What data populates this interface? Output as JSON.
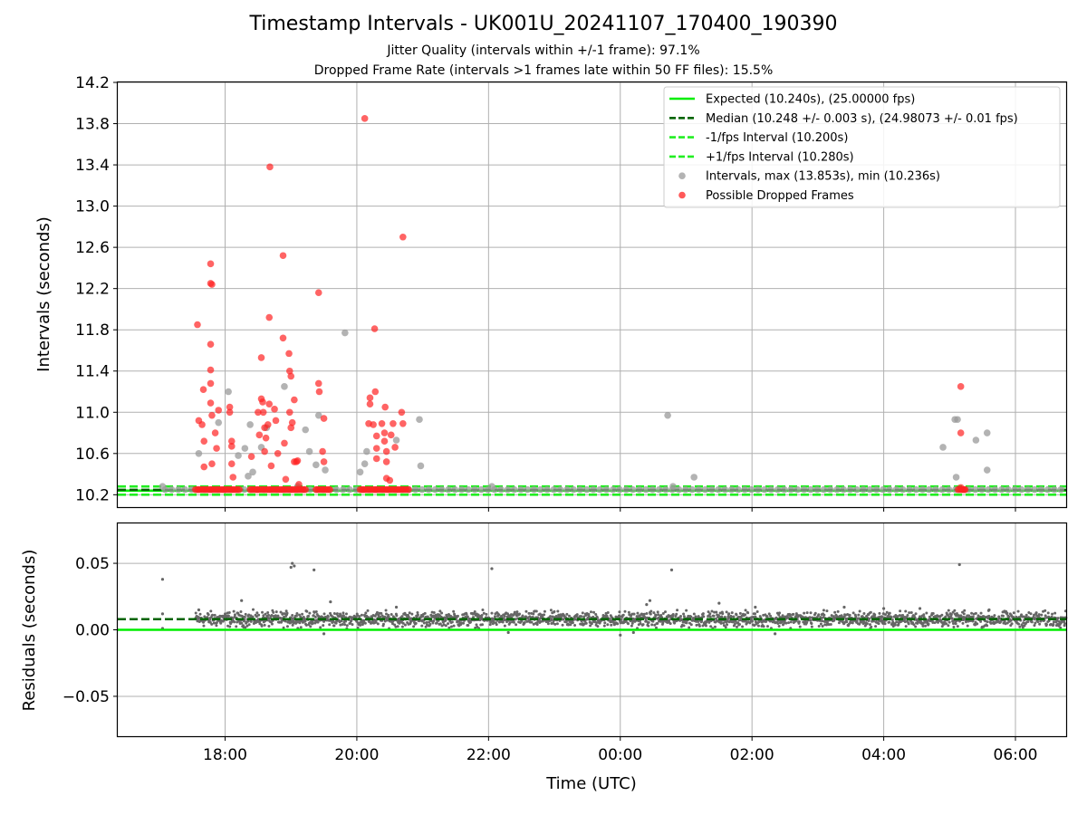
{
  "title": "Timestamp Intervals - UK001U_20241107_170400_190390",
  "subtitle_lines": [
    "Jitter Quality (intervals within +/-1 frame): 97.1%",
    "Dropped Frame Rate (intervals >1 frames late within 50 FF files): 15.5%"
  ],
  "chart_data": [
    {
      "type": "scatter",
      "panel": "top",
      "xlabel": "",
      "ylabel": "Intervals (seconds)",
      "x_unit": "hours since 00:00 UTC of first day (axis shows HH:MM)",
      "xlim": [
        16.37,
        30.77
      ],
      "ylim": [
        10.08,
        14.2
      ],
      "yticks": [
        10.2,
        10.6,
        11.0,
        11.4,
        11.8,
        12.2,
        12.6,
        13.0,
        13.4,
        13.8,
        14.2
      ],
      "ytick_labels": [
        "10.2",
        "10.6",
        "11.0",
        "11.4",
        "11.8",
        "12.2",
        "12.6",
        "13.0",
        "13.4",
        "13.8",
        "14.2"
      ],
      "grid": true,
      "legend_position": "upper right",
      "colors": {
        "expected": "#00ee00",
        "median": "#006400",
        "fps_bounds": "#22ee22",
        "intervals": "#999999",
        "dropped": "#ff2222"
      },
      "reference_lines": [
        {
          "name": "Expected (10.240s), (25.00000 fps)",
          "y": 10.24,
          "style": "solid",
          "color": "#00ee00"
        },
        {
          "name": "Median (10.248 +/- 0.003 s), (24.98073 +/- 0.01 fps)",
          "y": 10.248,
          "style": "dashed",
          "color": "#006400"
        },
        {
          "name": "-1/fps Interval (10.200s)",
          "y": 10.2,
          "style": "dashed",
          "color": "#22ee22"
        },
        {
          "name": "+1/fps Interval (10.280s)",
          "y": 10.28,
          "style": "dashed",
          "color": "#22ee22"
        }
      ],
      "series": [
        {
          "name": "Intervals, max (13.853s), min (10.236s)",
          "marker": "circle",
          "color": "#999999",
          "points": [
            [
              17.6,
              10.6
            ],
            [
              17.9,
              10.9
            ],
            [
              18.05,
              11.2
            ],
            [
              18.2,
              10.58
            ],
            [
              18.3,
              10.65
            ],
            [
              18.35,
              10.38
            ],
            [
              18.38,
              10.88
            ],
            [
              18.42,
              10.42
            ],
            [
              18.55,
              10.66
            ],
            [
              18.63,
              10.85
            ],
            [
              18.9,
              11.25
            ],
            [
              19.1,
              10.28
            ],
            [
              19.22,
              10.83
            ],
            [
              19.28,
              10.62
            ],
            [
              19.38,
              10.49
            ],
            [
              19.42,
              10.97
            ],
            [
              19.52,
              10.44
            ],
            [
              19.82,
              11.77
            ],
            [
              20.05,
              10.42
            ],
            [
              20.12,
              10.5
            ],
            [
              20.15,
              10.62
            ],
            [
              20.6,
              10.73
            ],
            [
              20.95,
              10.93
            ],
            [
              20.97,
              10.48
            ],
            [
              17.05,
              10.28
            ],
            [
              22.05,
              10.28
            ],
            [
              24.72,
              10.97
            ],
            [
              24.8,
              10.28
            ],
            [
              25.12,
              10.37
            ],
            [
              28.9,
              10.66
            ],
            [
              29.08,
              10.93
            ],
            [
              29.12,
              10.93
            ],
            [
              29.1,
              10.37
            ],
            [
              29.4,
              10.73
            ],
            [
              29.57,
              10.8
            ],
            [
              29.57,
              10.44
            ]
          ],
          "baseline_band": {
            "x_range": [
              16.37,
              30.77
            ],
            "y": 10.25
          }
        },
        {
          "name": "Possible Dropped Frames",
          "marker": "circle",
          "color": "#ff2222",
          "points": [
            [
              17.58,
              11.85
            ],
            [
              17.6,
              10.92
            ],
            [
              17.65,
              10.88
            ],
            [
              17.67,
              11.22
            ],
            [
              17.68,
              10.72
            ],
            [
              17.68,
              10.47
            ],
            [
              17.78,
              12.44
            ],
            [
              17.78,
              12.25
            ],
            [
              17.8,
              12.24
            ],
            [
              17.78,
              11.66
            ],
            [
              17.78,
              11.41
            ],
            [
              17.78,
              11.28
            ],
            [
              17.78,
              11.09
            ],
            [
              17.8,
              10.97
            ],
            [
              17.8,
              10.5
            ],
            [
              17.85,
              10.8
            ],
            [
              17.87,
              10.65
            ],
            [
              17.9,
              11.02
            ],
            [
              18.07,
              11.05
            ],
            [
              18.07,
              11.0
            ],
            [
              18.1,
              10.72
            ],
            [
              18.1,
              10.67
            ],
            [
              18.1,
              10.5
            ],
            [
              18.12,
              10.37
            ],
            [
              18.4,
              10.57
            ],
            [
              18.5,
              11.0
            ],
            [
              18.52,
              10.78
            ],
            [
              18.55,
              11.53
            ],
            [
              18.55,
              11.13
            ],
            [
              18.57,
              11.1
            ],
            [
              18.58,
              11.0
            ],
            [
              18.6,
              10.85
            ],
            [
              18.6,
              10.62
            ],
            [
              18.62,
              10.75
            ],
            [
              18.65,
              10.88
            ],
            [
              18.67,
              11.92
            ],
            [
              18.67,
              11.08
            ],
            [
              18.68,
              13.38
            ],
            [
              18.7,
              10.48
            ],
            [
              18.75,
              11.03
            ],
            [
              18.77,
              10.92
            ],
            [
              18.8,
              10.6
            ],
            [
              18.88,
              12.52
            ],
            [
              18.88,
              11.72
            ],
            [
              18.9,
              10.7
            ],
            [
              18.92,
              10.35
            ],
            [
              18.97,
              11.57
            ],
            [
              18.98,
              11.4
            ],
            [
              18.98,
              11.0
            ],
            [
              19.0,
              11.35
            ],
            [
              19.0,
              10.85
            ],
            [
              19.02,
              10.9
            ],
            [
              19.05,
              10.52
            ],
            [
              19.05,
              11.12
            ],
            [
              19.08,
              10.52
            ],
            [
              19.1,
              10.53
            ],
            [
              19.12,
              10.3
            ],
            [
              19.42,
              12.16
            ],
            [
              19.42,
              11.28
            ],
            [
              19.43,
              11.2
            ],
            [
              19.48,
              10.62
            ],
            [
              19.5,
              10.94
            ],
            [
              19.5,
              10.52
            ],
            [
              20.12,
              13.85
            ],
            [
              20.18,
              10.89
            ],
            [
              20.2,
              11.14
            ],
            [
              20.2,
              11.08
            ],
            [
              20.25,
              10.88
            ],
            [
              20.27,
              11.81
            ],
            [
              20.28,
              11.2
            ],
            [
              20.3,
              10.77
            ],
            [
              20.3,
              10.65
            ],
            [
              20.3,
              10.55
            ],
            [
              20.38,
              10.89
            ],
            [
              20.42,
              10.8
            ],
            [
              20.42,
              10.72
            ],
            [
              20.43,
              11.05
            ],
            [
              20.45,
              10.62
            ],
            [
              20.45,
              10.52
            ],
            [
              20.45,
              10.36
            ],
            [
              20.5,
              10.34
            ],
            [
              20.52,
              10.78
            ],
            [
              20.55,
              10.89
            ],
            [
              20.58,
              10.66
            ],
            [
              20.68,
              11.0
            ],
            [
              20.7,
              10.89
            ],
            [
              20.7,
              12.7
            ],
            [
              29.17,
              11.25
            ],
            [
              29.17,
              10.8
            ],
            [
              29.17,
              10.27
            ],
            [
              29.22,
              10.25
            ]
          ],
          "baseline_clusters": [
            {
              "x_range": [
                17.55,
                18.22
              ],
              "y": 10.25
            },
            {
              "x_range": [
                18.38,
                19.25
              ],
              "y": 10.25
            },
            {
              "x_range": [
                19.38,
                19.62
              ],
              "y": 10.25
            },
            {
              "x_range": [
                20.05,
                20.82
              ],
              "y": 10.25
            },
            {
              "x_range": [
                29.13,
                29.25
              ],
              "y": 10.25
            }
          ]
        }
      ]
    },
    {
      "type": "scatter",
      "panel": "bottom",
      "xlabel": "Time (UTC)",
      "ylabel": "Residuals (seconds)",
      "xlim": [
        16.37,
        30.77
      ],
      "ylim": [
        -0.08,
        0.08
      ],
      "yticks": [
        -0.05,
        0.0,
        0.05
      ],
      "ytick_labels": [
        "−0.05",
        "0.00",
        "0.05"
      ],
      "xticks": [
        18,
        20,
        22,
        24,
        26,
        28,
        30
      ],
      "xtick_labels": [
        "18:00",
        "20:00",
        "22:00",
        "00:00",
        "02:00",
        "04:00",
        "06:00"
      ],
      "grid": true,
      "reference_lines": [
        {
          "name": "Expected",
          "y": 0.0,
          "style": "solid",
          "color": "#00ee00"
        },
        {
          "name": "Median",
          "y": 0.008,
          "style": "dashed",
          "color": "#006400"
        }
      ],
      "series": [
        {
          "name": "Residuals",
          "marker": "dot",
          "color": "#666666",
          "band": {
            "x_range": [
              17.55,
              30.77
            ],
            "y_center": 0.008,
            "spread": 0.006
          },
          "outliers": [
            [
              17.05,
              0.038
            ],
            [
              17.05,
              0.012
            ],
            [
              17.05,
              0.001
            ],
            [
              17.6,
              0.015
            ],
            [
              18.25,
              0.022
            ],
            [
              19.0,
              0.047
            ],
            [
              19.02,
              0.05
            ],
            [
              19.05,
              0.048
            ],
            [
              19.35,
              0.045
            ],
            [
              19.6,
              0.021
            ],
            [
              19.5,
              -0.003
            ],
            [
              20.6,
              0.017
            ],
            [
              22.05,
              0.046
            ],
            [
              22.3,
              -0.002
            ],
            [
              24.0,
              -0.004
            ],
            [
              24.4,
              0.019
            ],
            [
              24.45,
              0.022
            ],
            [
              24.78,
              0.045
            ],
            [
              24.2,
              -0.002
            ],
            [
              25.5,
              0.02
            ],
            [
              26.05,
              0.017
            ],
            [
              26.35,
              -0.003
            ],
            [
              27.4,
              0.017
            ],
            [
              28.0,
              0.016
            ],
            [
              29.15,
              0.049
            ],
            [
              29.6,
              0.015
            ],
            [
              28.55,
              0.016
            ]
          ]
        }
      ]
    }
  ]
}
